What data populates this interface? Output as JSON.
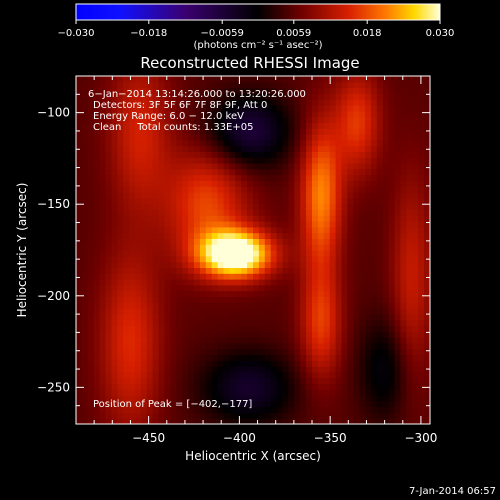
{
  "chart_data": {
    "type": "heatmap",
    "title": "Reconstructed RHESSI Image",
    "xlabel": "Heliocentric X (arcsec)",
    "ylabel": "Heliocentric Y (arcsec)",
    "xlim": [
      -490,
      -295
    ],
    "ylim": [
      -270,
      -80
    ],
    "xticks": [
      -450,
      -400,
      -350,
      -300
    ],
    "yticks": [
      -100,
      -150,
      -200,
      -250
    ],
    "colorbar": {
      "ticks": [
        -0.03,
        -0.018,
        -0.0059,
        0.0059,
        0.018,
        0.03
      ],
      "tick_labels": [
        "−0.030",
        "−0.018",
        "−0.0059",
        "0.0059",
        "0.018",
        "0.030"
      ],
      "range": [
        -0.03,
        0.03
      ],
      "unit_label": "(photons cm⁻² s⁻¹ asec⁻²)"
    },
    "annotations": [
      "6−Jan−2014 13:14:26.000 to 13:20:26.000",
      "Detectors: 3F 5F 6F 7F 8F 9F, Att 0",
      "Energy Range: 6.0 − 12.0 keV",
      "Clean     Total counts: 1.33E+05",
      "Position of Peak = [−402,−177]"
    ],
    "peak": {
      "x": -402,
      "y": -177
    },
    "features": [
      {
        "x": -402,
        "y": -177,
        "amp": 0.03,
        "sx": 14,
        "sy": 9
      },
      {
        "x": -418,
        "y": -150,
        "amp": 0.012,
        "sx": 16,
        "sy": 22
      },
      {
        "x": -355,
        "y": -145,
        "amp": 0.016,
        "sx": 8,
        "sy": 28
      },
      {
        "x": -335,
        "y": -105,
        "amp": 0.011,
        "sx": 9,
        "sy": 20
      },
      {
        "x": -455,
        "y": -110,
        "amp": 0.009,
        "sx": 12,
        "sy": 30
      },
      {
        "x": -355,
        "y": -215,
        "amp": 0.011,
        "sx": 8,
        "sy": 22
      },
      {
        "x": -460,
        "y": -225,
        "amp": 0.01,
        "sx": 12,
        "sy": 35
      },
      {
        "x": -305,
        "y": -190,
        "amp": 0.008,
        "sx": 8,
        "sy": 40
      },
      {
        "x": -395,
        "y": -110,
        "amp": -0.012,
        "sx": 16,
        "sy": 14
      },
      {
        "x": -395,
        "y": -250,
        "amp": -0.01,
        "sx": 18,
        "sy": 14
      },
      {
        "x": -320,
        "y": -240,
        "amp": -0.007,
        "sx": 10,
        "sy": 20
      }
    ],
    "background_level": 0.0055,
    "grid": false
  },
  "footer_date": "7-Jan-2014 06:57"
}
